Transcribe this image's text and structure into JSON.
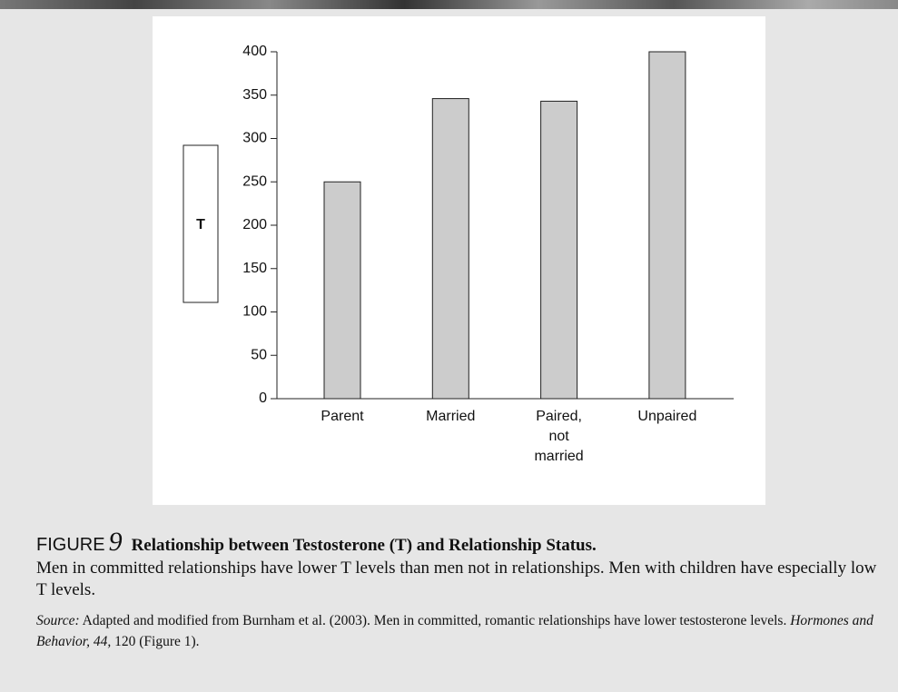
{
  "chart_data": {
    "type": "bar",
    "y_label": "T",
    "categories": [
      "Parent",
      "Married",
      "Paired, not married",
      "Unpaired"
    ],
    "values": [
      250,
      346,
      343,
      400
    ],
    "color": "#cccccc",
    "ylim": [
      0,
      400
    ],
    "yticks": [
      0,
      50,
      100,
      150,
      200,
      250,
      300,
      350,
      400
    ],
    "grid": false
  },
  "caption": {
    "label": "FIGURE",
    "number": "9",
    "title": "Relationship between Testosterone (T) and Relationship Status.",
    "text": "Men in committed relationships have lower T levels than men not in relationships. Men with children have especially low T levels.",
    "source_label": "Source:",
    "source_text": "Adapted and modified from Burnham et al. (2003). Men in committed, romantic relationships have lower testosterone levels.",
    "source_journal": "Hormones and Behavior, 44,",
    "source_end": "120 (Figure 1)."
  }
}
